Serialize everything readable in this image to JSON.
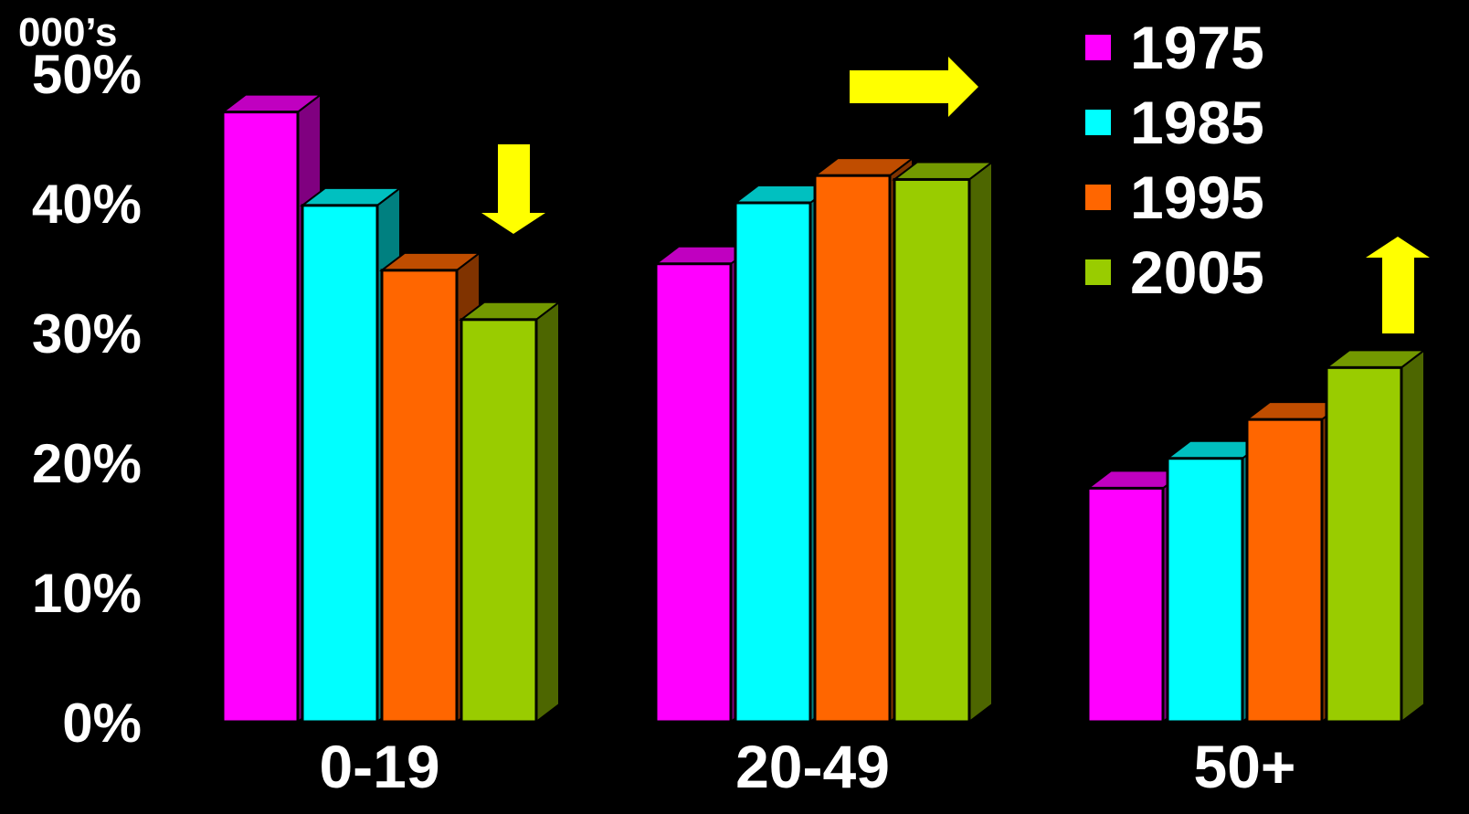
{
  "chart_data": {
    "type": "bar",
    "unit_label": "000’s",
    "categories": [
      "0-19",
      "20-49",
      "50+"
    ],
    "yticks": [
      "0%",
      "10%",
      "20%",
      "30%",
      "40%",
      "50%"
    ],
    "ylim": [
      0,
      50
    ],
    "grid": false,
    "legend_position": "top-right",
    "series": [
      {
        "name": "1975",
        "values": [
          47,
          35.3,
          18
        ],
        "color": "#ff00ff",
        "top_color": "#c000c0",
        "side_color": "#800080"
      },
      {
        "name": "1985",
        "values": [
          39.8,
          40,
          20.3
        ],
        "color": "#00ffff",
        "top_color": "#00c0c0",
        "side_color": "#008080"
      },
      {
        "name": "1995",
        "values": [
          34.8,
          42.1,
          23.3
        ],
        "color": "#ff6600",
        "top_color": "#c04d00",
        "side_color": "#803300"
      },
      {
        "name": "2005",
        "values": [
          31,
          41.8,
          27.3
        ],
        "color": "#99cc00",
        "top_color": "#739900",
        "side_color": "#4d6600"
      }
    ],
    "annotations": [
      {
        "type": "arrow",
        "direction": "down",
        "color": "#ffff00",
        "near": "0-19"
      },
      {
        "type": "arrow",
        "direction": "right",
        "color": "#ffff00",
        "near": "20-49"
      },
      {
        "type": "arrow",
        "direction": "up",
        "color": "#ffff00",
        "near": "50+"
      }
    ]
  }
}
